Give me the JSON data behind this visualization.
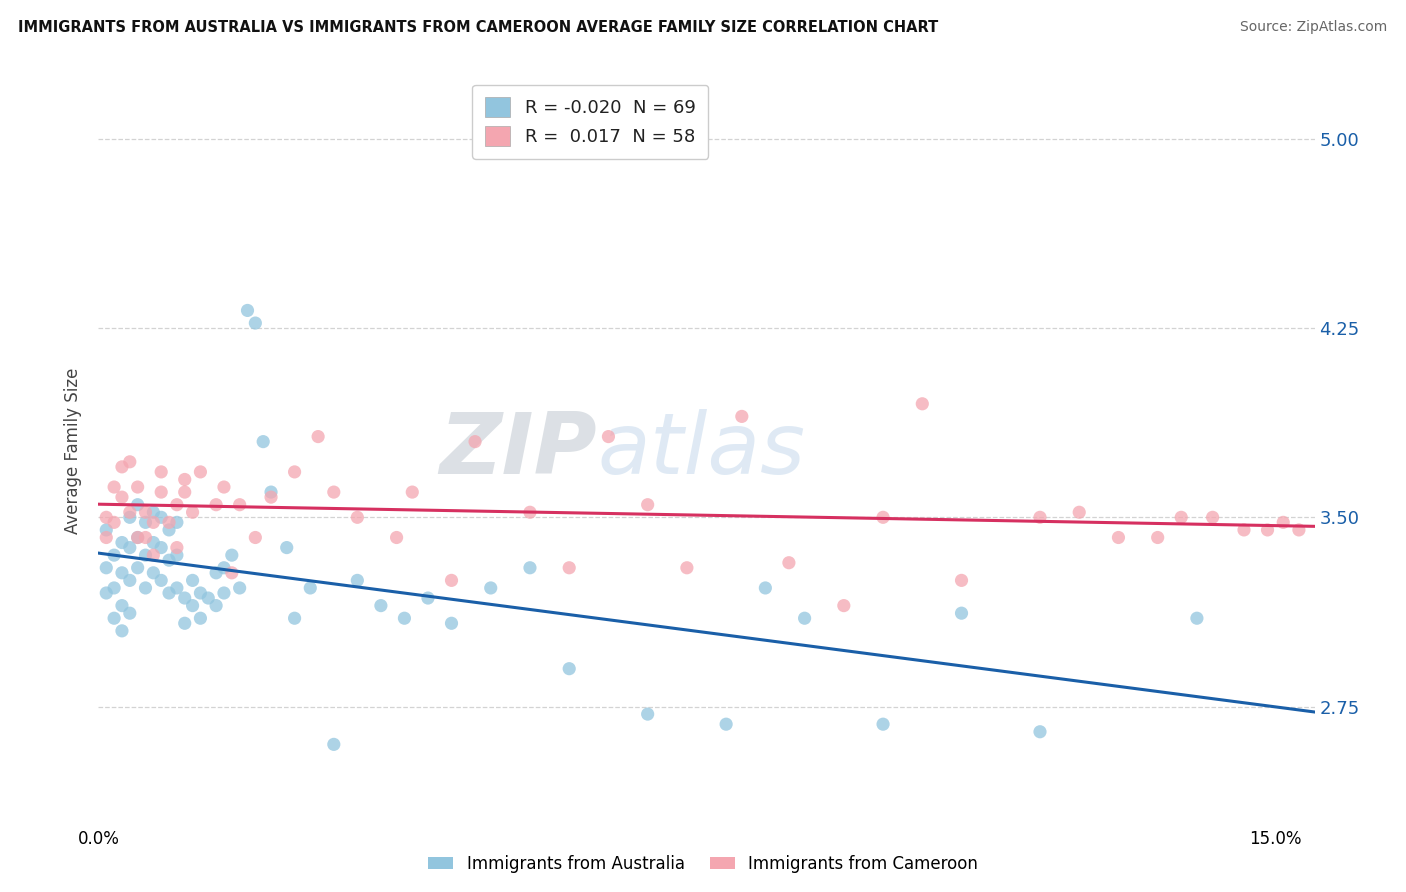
{
  "title": "IMMIGRANTS FROM AUSTRALIA VS IMMIGRANTS FROM CAMEROON AVERAGE FAMILY SIZE CORRELATION CHART",
  "source": "Source: ZipAtlas.com",
  "ylabel": "Average Family Size",
  "xlim": [
    0.0,
    0.155
  ],
  "ylim": [
    2.28,
    5.25
  ],
  "yticks": [
    2.75,
    3.5,
    4.25,
    5.0
  ],
  "xticks": [
    0.0,
    0.15
  ],
  "xticklabels": [
    "0.0%",
    "15.0%"
  ],
  "r_australia": -0.02,
  "n_australia": 69,
  "r_cameroon": 0.017,
  "n_cameroon": 58,
  "color_australia": "#92c5de",
  "color_cameroon": "#f4a6b0",
  "line_color_australia": "#1a5fa8",
  "line_color_cameroon": "#d63060",
  "background_color": "#ffffff",
  "grid_color": "#cccccc",
  "legend_labels": [
    "Immigrants from Australia",
    "Immigrants from Cameroon"
  ],
  "australia_x": [
    0.001,
    0.001,
    0.001,
    0.002,
    0.002,
    0.002,
    0.003,
    0.003,
    0.003,
    0.003,
    0.004,
    0.004,
    0.004,
    0.004,
    0.005,
    0.005,
    0.005,
    0.006,
    0.006,
    0.006,
    0.007,
    0.007,
    0.007,
    0.008,
    0.008,
    0.008,
    0.009,
    0.009,
    0.009,
    0.01,
    0.01,
    0.01,
    0.011,
    0.011,
    0.012,
    0.012,
    0.013,
    0.013,
    0.014,
    0.015,
    0.015,
    0.016,
    0.016,
    0.017,
    0.018,
    0.019,
    0.02,
    0.021,
    0.022,
    0.024,
    0.025,
    0.027,
    0.03,
    0.033,
    0.036,
    0.039,
    0.042,
    0.045,
    0.05,
    0.055,
    0.06,
    0.07,
    0.08,
    0.085,
    0.09,
    0.1,
    0.11,
    0.12,
    0.14
  ],
  "australia_y": [
    3.45,
    3.3,
    3.2,
    3.35,
    3.22,
    3.1,
    3.4,
    3.28,
    3.15,
    3.05,
    3.5,
    3.38,
    3.25,
    3.12,
    3.55,
    3.42,
    3.3,
    3.48,
    3.35,
    3.22,
    3.52,
    3.4,
    3.28,
    3.5,
    3.38,
    3.25,
    3.45,
    3.33,
    3.2,
    3.48,
    3.35,
    3.22,
    3.18,
    3.08,
    3.25,
    3.15,
    3.2,
    3.1,
    3.18,
    3.28,
    3.15,
    3.3,
    3.2,
    3.35,
    3.22,
    4.32,
    4.27,
    3.8,
    3.6,
    3.38,
    3.1,
    3.22,
    2.6,
    3.25,
    3.15,
    3.1,
    3.18,
    3.08,
    3.22,
    3.3,
    2.9,
    2.72,
    2.68,
    3.22,
    3.1,
    2.68,
    3.12,
    2.65,
    3.1
  ],
  "cameroon_x": [
    0.001,
    0.001,
    0.002,
    0.002,
    0.003,
    0.003,
    0.004,
    0.004,
    0.005,
    0.005,
    0.006,
    0.006,
    0.007,
    0.007,
    0.008,
    0.008,
    0.009,
    0.01,
    0.01,
    0.011,
    0.011,
    0.012,
    0.013,
    0.015,
    0.016,
    0.017,
    0.018,
    0.02,
    0.022,
    0.025,
    0.028,
    0.03,
    0.033,
    0.038,
    0.04,
    0.045,
    0.048,
    0.055,
    0.06,
    0.065,
    0.07,
    0.075,
    0.082,
    0.088,
    0.095,
    0.1,
    0.105,
    0.11,
    0.12,
    0.125,
    0.13,
    0.135,
    0.138,
    0.142,
    0.146,
    0.149,
    0.151,
    0.153
  ],
  "cameroon_y": [
    3.5,
    3.42,
    3.62,
    3.48,
    3.58,
    3.7,
    3.72,
    3.52,
    3.42,
    3.62,
    3.52,
    3.42,
    3.35,
    3.48,
    3.6,
    3.68,
    3.48,
    3.55,
    3.38,
    3.6,
    3.65,
    3.52,
    3.68,
    3.55,
    3.62,
    3.28,
    3.55,
    3.42,
    3.58,
    3.68,
    3.82,
    3.6,
    3.5,
    3.42,
    3.6,
    3.25,
    3.8,
    3.52,
    3.3,
    3.82,
    3.55,
    3.3,
    3.9,
    3.32,
    3.15,
    3.5,
    3.95,
    3.25,
    3.5,
    3.52,
    3.42,
    3.42,
    3.5,
    3.5,
    3.45,
    3.45,
    3.48,
    3.45
  ]
}
